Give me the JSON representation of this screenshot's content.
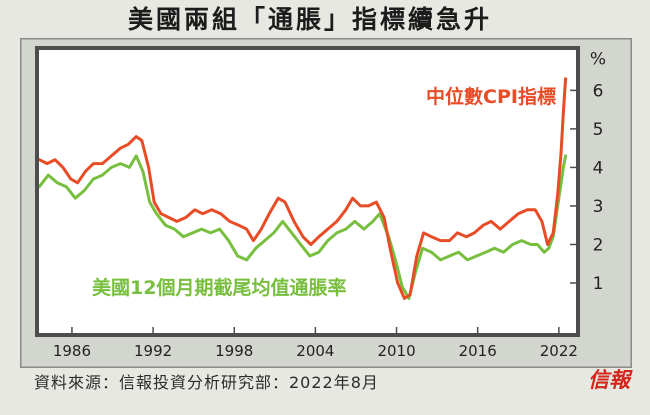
{
  "chart_data": {
    "type": "line",
    "title": "美國兩組「通脹」指標續急升",
    "y_unit": "%",
    "y_axis_side": "right",
    "x_ticks": [
      "1986",
      "1992",
      "1998",
      "2004",
      "2010",
      "2016",
      "2022"
    ],
    "y_ticks": [
      1,
      2,
      3,
      4,
      5,
      6
    ],
    "xlim": [
      "1983-06",
      "2023-06"
    ],
    "ylim": [
      -0.35,
      7.1
    ],
    "grid": false,
    "series": [
      {
        "name": "中位數CPI指標",
        "color": "#e84c26",
        "points": [
          [
            "1983-08",
            4.2
          ],
          [
            "1984-03",
            4.1
          ],
          [
            "1984-10",
            4.2
          ],
          [
            "1985-05",
            4.0
          ],
          [
            "1985-12",
            3.7
          ],
          [
            "1986-06",
            3.6
          ],
          [
            "1987-01",
            3.9
          ],
          [
            "1987-08",
            4.1
          ],
          [
            "1988-04",
            4.1
          ],
          [
            "1988-12",
            4.3
          ],
          [
            "1989-08",
            4.5
          ],
          [
            "1990-03",
            4.6
          ],
          [
            "1990-10",
            4.8
          ],
          [
            "1991-03",
            4.7
          ],
          [
            "1991-09",
            4.0
          ],
          [
            "1992-02",
            3.1
          ],
          [
            "1992-08",
            2.8
          ],
          [
            "1993-03",
            2.7
          ],
          [
            "1993-10",
            2.6
          ],
          [
            "1994-06",
            2.7
          ],
          [
            "1995-02",
            2.9
          ],
          [
            "1995-09",
            2.8
          ],
          [
            "1996-05",
            2.9
          ],
          [
            "1997-01",
            2.8
          ],
          [
            "1997-09",
            2.6
          ],
          [
            "1998-05",
            2.5
          ],
          [
            "1998-12",
            2.4
          ],
          [
            "1999-06",
            2.1
          ],
          [
            "2000-01",
            2.4
          ],
          [
            "2000-08",
            2.8
          ],
          [
            "2001-04",
            3.2
          ],
          [
            "2001-10",
            3.1
          ],
          [
            "2002-06",
            2.6
          ],
          [
            "2003-02",
            2.2
          ],
          [
            "2003-09",
            2.0
          ],
          [
            "2004-04",
            2.2
          ],
          [
            "2004-12",
            2.4
          ],
          [
            "2005-08",
            2.6
          ],
          [
            "2006-04",
            2.9
          ],
          [
            "2006-10",
            3.2
          ],
          [
            "2007-05",
            3.0
          ],
          [
            "2007-12",
            3.0
          ],
          [
            "2008-07",
            3.1
          ],
          [
            "2009-02",
            2.7
          ],
          [
            "2009-08",
            1.8
          ],
          [
            "2010-02",
            1.0
          ],
          [
            "2010-08",
            0.6
          ],
          [
            "2011-01",
            0.7
          ],
          [
            "2011-07",
            1.7
          ],
          [
            "2012-01",
            2.3
          ],
          [
            "2012-08",
            2.2
          ],
          [
            "2013-04",
            2.1
          ],
          [
            "2013-12",
            2.1
          ],
          [
            "2014-07",
            2.3
          ],
          [
            "2015-03",
            2.2
          ],
          [
            "2015-10",
            2.3
          ],
          [
            "2016-06",
            2.5
          ],
          [
            "2017-01",
            2.6
          ],
          [
            "2017-09",
            2.4
          ],
          [
            "2018-05",
            2.6
          ],
          [
            "2019-01",
            2.8
          ],
          [
            "2019-09",
            2.9
          ],
          [
            "2020-04",
            2.9
          ],
          [
            "2020-10",
            2.6
          ],
          [
            "2021-03",
            2.0
          ],
          [
            "2021-08",
            2.3
          ],
          [
            "2021-12",
            3.3
          ],
          [
            "2022-03",
            4.4
          ],
          [
            "2022-05",
            5.4
          ],
          [
            "2022-07",
            6.3
          ]
        ]
      },
      {
        "name": "美國12個月期截尾均值通脹率",
        "color": "#78bf3f",
        "points": [
          [
            "1983-08",
            3.5
          ],
          [
            "1984-04",
            3.8
          ],
          [
            "1984-12",
            3.6
          ],
          [
            "1985-08",
            3.5
          ],
          [
            "1986-04",
            3.2
          ],
          [
            "1986-12",
            3.4
          ],
          [
            "1987-08",
            3.7
          ],
          [
            "1988-04",
            3.8
          ],
          [
            "1988-12",
            4.0
          ],
          [
            "1989-08",
            4.1
          ],
          [
            "1990-04",
            4.0
          ],
          [
            "1990-10",
            4.3
          ],
          [
            "1991-04",
            3.9
          ],
          [
            "1991-10",
            3.1
          ],
          [
            "1992-04",
            2.8
          ],
          [
            "1992-12",
            2.5
          ],
          [
            "1993-08",
            2.4
          ],
          [
            "1994-04",
            2.2
          ],
          [
            "1994-12",
            2.3
          ],
          [
            "1995-08",
            2.4
          ],
          [
            "1996-04",
            2.3
          ],
          [
            "1996-12",
            2.4
          ],
          [
            "1997-08",
            2.1
          ],
          [
            "1998-04",
            1.7
          ],
          [
            "1998-12",
            1.6
          ],
          [
            "1999-08",
            1.9
          ],
          [
            "2000-04",
            2.1
          ],
          [
            "2000-12",
            2.3
          ],
          [
            "2001-08",
            2.6
          ],
          [
            "2002-04",
            2.3
          ],
          [
            "2002-12",
            2.0
          ],
          [
            "2003-08",
            1.7
          ],
          [
            "2004-04",
            1.8
          ],
          [
            "2004-12",
            2.1
          ],
          [
            "2005-08",
            2.3
          ],
          [
            "2006-04",
            2.4
          ],
          [
            "2006-12",
            2.6
          ],
          [
            "2007-08",
            2.4
          ],
          [
            "2008-04",
            2.6
          ],
          [
            "2008-10",
            2.8
          ],
          [
            "2009-06",
            2.2
          ],
          [
            "2009-12",
            1.6
          ],
          [
            "2010-06",
            0.9
          ],
          [
            "2010-12",
            0.6
          ],
          [
            "2011-06",
            1.3
          ],
          [
            "2011-12",
            1.9
          ],
          [
            "2012-08",
            1.8
          ],
          [
            "2013-04",
            1.6
          ],
          [
            "2013-12",
            1.7
          ],
          [
            "2014-08",
            1.8
          ],
          [
            "2015-04",
            1.6
          ],
          [
            "2015-12",
            1.7
          ],
          [
            "2016-08",
            1.8
          ],
          [
            "2017-04",
            1.9
          ],
          [
            "2017-12",
            1.8
          ],
          [
            "2018-08",
            2.0
          ],
          [
            "2019-04",
            2.1
          ],
          [
            "2019-12",
            2.0
          ],
          [
            "2020-06",
            2.0
          ],
          [
            "2020-12",
            1.8
          ],
          [
            "2021-04",
            1.9
          ],
          [
            "2021-08",
            2.2
          ],
          [
            "2021-12",
            3.0
          ],
          [
            "2022-03",
            3.6
          ],
          [
            "2022-05",
            4.0
          ],
          [
            "2022-07",
            4.3
          ]
        ]
      }
    ]
  },
  "source": "資料來源：信報投資分析研究部：2022年8月",
  "logo": {
    "text": "信報",
    "color": "#d3261c"
  }
}
